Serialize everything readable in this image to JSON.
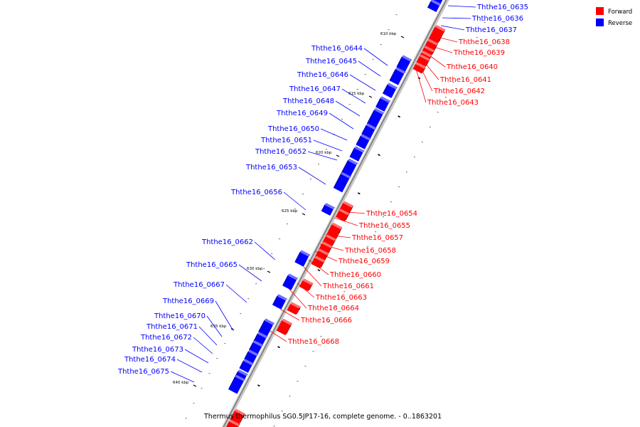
{
  "caption": "Thermus thermophilus SG0.5JP17-16, complete genome. - 0..1863201",
  "legend": [
    {
      "label": "Forward",
      "color": "#ff0000"
    },
    {
      "label": "Reverse",
      "color": "#0000ff"
    }
  ],
  "ticks": [
    "610 kbp",
    "615 kbp",
    "620 kbp",
    "625 kbp",
    "630 kbp",
    "635 kbp",
    "640 kbp"
  ],
  "genes": {
    "reverse": [
      "Ththe16_0635",
      "Ththe16_0636",
      "Ththe16_0637",
      "Ththe16_0644",
      "Ththe16_0645",
      "Ththe16_0646",
      "Ththe16_0647",
      "Ththe16_0648",
      "Ththe16_0649",
      "Ththe16_0650",
      "Ththe16_0651",
      "Ththe16_0652",
      "Ththe16_0653",
      "Ththe16_0656",
      "Ththe16_0662",
      "Ththe16_0665",
      "Ththe16_0667",
      "Ththe16_0669",
      "Ththe16_0670",
      "Ththe16_0671",
      "Ththe16_0672",
      "Ththe16_0673",
      "Ththe16_0674",
      "Ththe16_0675"
    ],
    "forward": [
      "Ththe16_0638",
      "Ththe16_0639",
      "Ththe16_0640",
      "Ththe16_0641",
      "Ththe16_0642",
      "Ththe16_0643",
      "Ththe16_0654",
      "Ththe16_0655",
      "Ththe16_0657",
      "Ththe16_0658",
      "Ththe16_0659",
      "Ththe16_0660",
      "Ththe16_0661",
      "Ththe16_0663",
      "Ththe16_0664",
      "Ththe16_0666",
      "Ththe16_0668"
    ]
  },
  "colors": {
    "forward": "#ff0000",
    "reverse": "#0000ff",
    "axis": "#808080"
  }
}
